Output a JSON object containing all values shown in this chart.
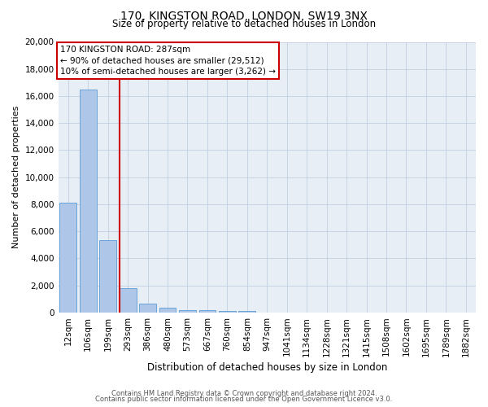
{
  "title": "170, KINGSTON ROAD, LONDON, SW19 3NX",
  "subtitle": "Size of property relative to detached houses in London",
  "xlabel": "Distribution of detached houses by size in London",
  "ylabel": "Number of detached properties",
  "footer_line1": "Contains HM Land Registry data © Crown copyright and database right 2024.",
  "footer_line2": "Contains public sector information licensed under the Open Government Licence v3.0.",
  "annotation_line1": "170 KINGSTON ROAD: 287sqm",
  "annotation_line2": "← 90% of detached houses are smaller (29,512)",
  "annotation_line3": "10% of semi-detached houses are larger (3,262) →",
  "categories": [
    "12sqm",
    "106sqm",
    "199sqm",
    "293sqm",
    "386sqm",
    "480sqm",
    "573sqm",
    "667sqm",
    "760sqm",
    "854sqm",
    "947sqm",
    "1041sqm",
    "1134sqm",
    "1228sqm",
    "1321sqm",
    "1415sqm",
    "1508sqm",
    "1602sqm",
    "1695sqm",
    "1789sqm",
    "1882sqm"
  ],
  "values": [
    8100,
    16500,
    5350,
    1800,
    650,
    350,
    175,
    150,
    120,
    100,
    0,
    0,
    0,
    0,
    0,
    0,
    0,
    0,
    0,
    0,
    0
  ],
  "bar_color": "#aec6e8",
  "bar_edge_color": "#5b9bd5",
  "vline_color": "#cc0000",
  "vline_position": 2.6,
  "background_color": "#ffffff",
  "axes_bg_color": "#e8eef6",
  "grid_color": "#c0cfe0",
  "ylim": [
    0,
    20000
  ],
  "yticks": [
    0,
    2000,
    4000,
    6000,
    8000,
    10000,
    12000,
    14000,
    16000,
    18000,
    20000
  ],
  "title_fontsize": 10,
  "subtitle_fontsize": 8.5,
  "ylabel_fontsize": 8,
  "xlabel_fontsize": 8.5,
  "tick_fontsize": 7.5,
  "annotation_fontsize": 7.5,
  "footer_fontsize": 6
}
